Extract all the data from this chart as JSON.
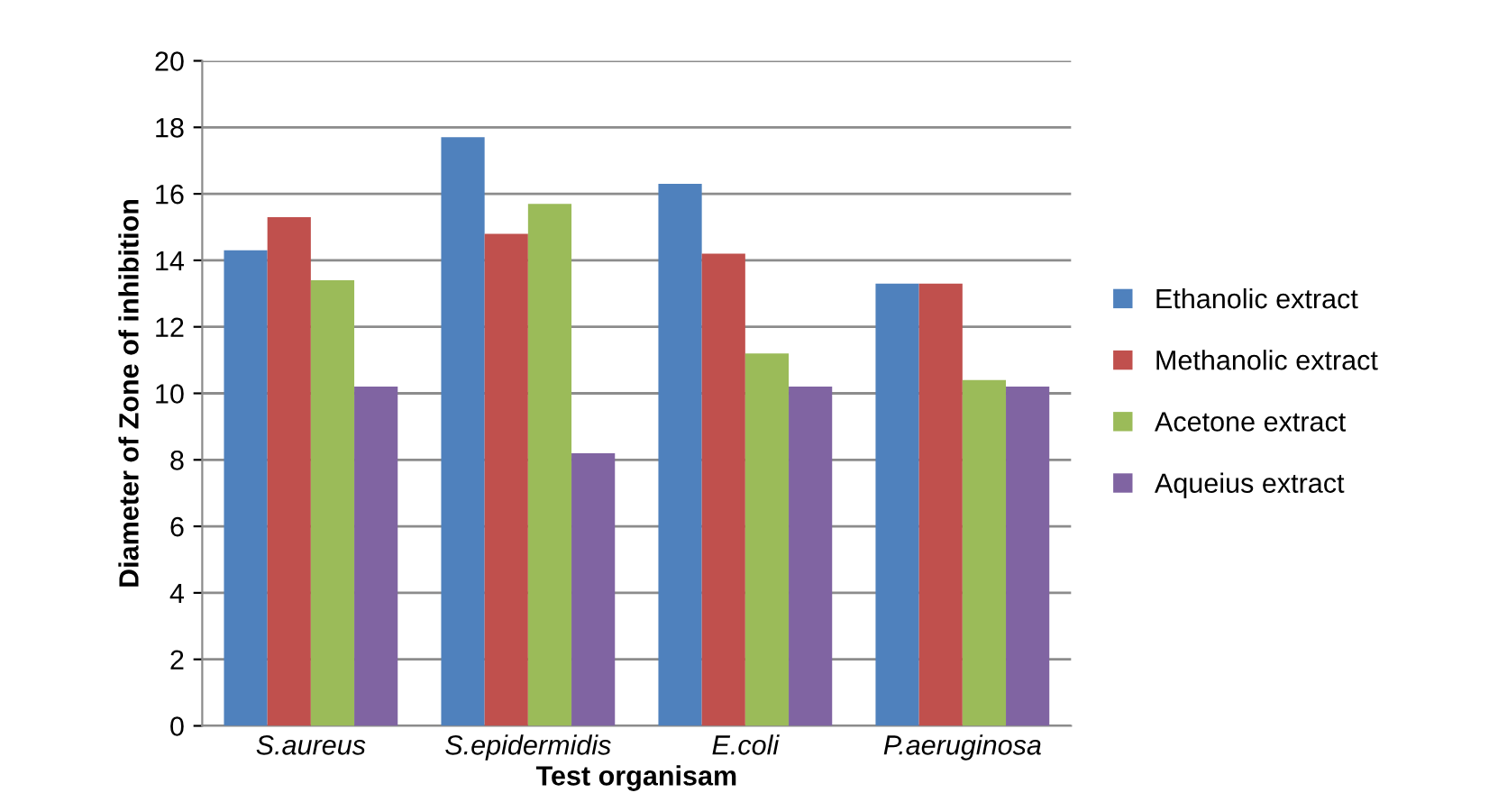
{
  "chart_data": {
    "type": "bar",
    "xlabel": "Test organisam",
    "ylabel": "Diameter of Zone of inhibition",
    "categories": [
      "S.aureus",
      "S.epidermidis",
      "E.coli",
      "P.aeruginosa"
    ],
    "series": [
      {
        "name": "Ethanolic extract",
        "color": "#4f81bd",
        "values": [
          14.3,
          17.7,
          16.3,
          13.3
        ]
      },
      {
        "name": "Methanolic extract",
        "color": "#c0504d",
        "values": [
          15.3,
          14.8,
          14.2,
          13.3
        ]
      },
      {
        "name": "Acetone extract",
        "color": "#9bbb59",
        "values": [
          13.4,
          15.7,
          11.2,
          10.4
        ]
      },
      {
        "name": "Aqueius extract",
        "color": "#8064a2",
        "values": [
          10.2,
          8.2,
          10.2,
          10.2
        ]
      }
    ],
    "ylim": [
      0,
      20
    ],
    "yticks": [
      0,
      2,
      4,
      6,
      8,
      10,
      12,
      14,
      16,
      18,
      20
    ],
    "grid": "y",
    "legend": "right"
  }
}
